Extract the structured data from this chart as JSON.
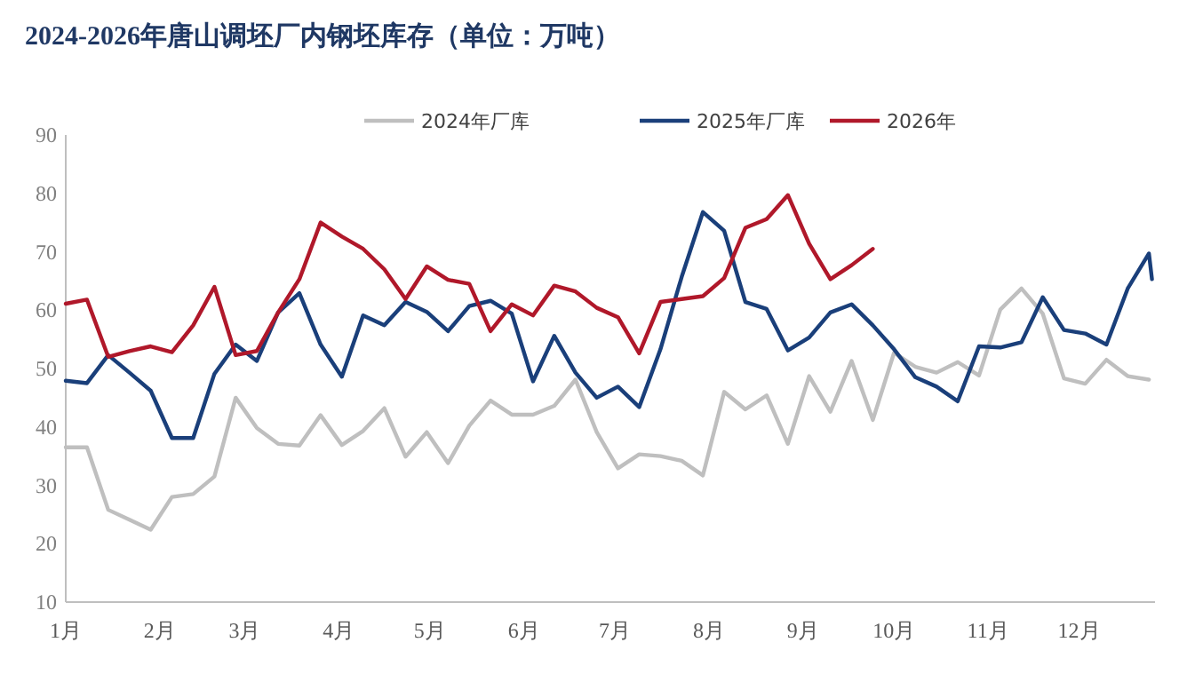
{
  "chart_data": {
    "type": "line",
    "title": "2024-2026年唐山调坯厂内钢坯库存（单位：万吨）",
    "x": [
      "--01-01",
      "--01-08",
      "--01-15",
      "--01-22",
      "--01-29",
      "--02-05",
      "--02-12",
      "--02-19",
      "--02-26",
      "--03-05",
      "--03-12",
      "--03-19",
      "--03-26",
      "--04-02",
      "--04-09",
      "--04-16",
      "--04-23",
      "--04-30",
      "--05-07",
      "--05-14",
      "--05-21",
      "--05-28",
      "--06-04",
      "--06-11",
      "--06-18",
      "--06-25",
      "--07-02",
      "--07-09",
      "--07-16",
      "--07-23",
      "--07-30",
      "--08-06",
      "--08-13",
      "--08-20",
      "--08-27",
      "--09-03",
      "--09-10",
      "--09-17",
      "--09-24",
      "--10-01",
      "--10-08",
      "--10-15",
      "--10-22",
      "--10-29",
      "--11-05",
      "--11-12",
      "--11-19",
      "--11-26",
      "--12-03",
      "--12-10",
      "--12-17",
      "--12-24"
    ],
    "xlim": [
      "--01-01",
      "--12-26"
    ],
    "xticks": [
      {
        "value": "--01-01",
        "label": "1月"
      },
      {
        "value": "--02-01",
        "label": "2月"
      },
      {
        "value": "--03-01",
        "label": "3月"
      },
      {
        "value": "--04-01",
        "label": "4月"
      },
      {
        "value": "--05-01",
        "label": "5月"
      },
      {
        "value": "--06-01",
        "label": "6月"
      },
      {
        "value": "--07-01",
        "label": "7月"
      },
      {
        "value": "--08-01",
        "label": "8月"
      },
      {
        "value": "--09-01",
        "label": "9月"
      },
      {
        "value": "--10-01",
        "label": "10月"
      },
      {
        "value": "--11-01",
        "label": "11月"
      },
      {
        "value": "--12-01",
        "label": "12月"
      }
    ],
    "ylim": [
      10,
      90
    ],
    "yticks": [
      10,
      20,
      30,
      40,
      50,
      60,
      70,
      80,
      90
    ],
    "legend": "top",
    "series": [
      {
        "name": "2024年厂库",
        "color": "#bfbfbf",
        "values": [
          36.5,
          36.5,
          25.8,
          24.1,
          22.4,
          28.0,
          28.5,
          31.5,
          45.0,
          39.8,
          37.1,
          36.8,
          42.0,
          36.9,
          39.3,
          43.2,
          34.9,
          39.1,
          33.8,
          40.2,
          44.5,
          42.1,
          42.1,
          43.6,
          48.1,
          39.1,
          32.9,
          35.3,
          35.0,
          34.2,
          31.7,
          46.0,
          43.0,
          45.4,
          37.1,
          48.7,
          42.6,
          51.3,
          41.2,
          52.7,
          50.3,
          49.3,
          51.1,
          48.8,
          60.1,
          63.7,
          59.4,
          48.3,
          47.4,
          51.5,
          48.7,
          48.1
        ]
      },
      {
        "name": "2025年厂库",
        "color": "#1a3f7a",
        "x": [
          "--01-01",
          "--01-08",
          "--01-15",
          "--01-22",
          "--01-29",
          "--02-05",
          "--02-12",
          "--02-19",
          "--02-26",
          "--03-05",
          "--03-12",
          "--03-19",
          "--03-26",
          "--04-02",
          "--04-09",
          "--04-16",
          "--04-23",
          "--04-30",
          "--05-07",
          "--05-14",
          "--05-21",
          "--05-28",
          "--06-04",
          "--06-11",
          "--06-18",
          "--06-25",
          "--07-02",
          "--07-09",
          "--07-16",
          "--07-23",
          "--07-30",
          "--08-06",
          "--08-13",
          "--08-20",
          "--08-27",
          "--09-03",
          "--09-10",
          "--09-17",
          "--09-24",
          "--10-01",
          "--10-08",
          "--10-15",
          "--10-22",
          "--10-29",
          "--11-05",
          "--11-12",
          "--11-19",
          "--11-26",
          "--12-03",
          "--12-10",
          "--12-17",
          "--12-24",
          "--12-25"
        ],
        "values": [
          47.9,
          47.5,
          52.3,
          49.3,
          46.2,
          38.1,
          38.1,
          49.1,
          54.1,
          51.3,
          59.6,
          62.9,
          54.1,
          48.6,
          59.1,
          57.4,
          61.4,
          59.7,
          56.4,
          60.7,
          61.6,
          59.4,
          47.8,
          55.6,
          49.3,
          45.0,
          46.9,
          43.4,
          53.3,
          65.7,
          76.8,
          73.6,
          61.4,
          60.2,
          53.1,
          55.3,
          59.6,
          61.0,
          57.4,
          53.3,
          48.5,
          46.9,
          44.4,
          53.8,
          53.6,
          54.5,
          62.2,
          56.6,
          56.0,
          54.1,
          63.7,
          69.7,
          65.3
        ]
      },
      {
        "name": "2026年",
        "color": "#b0182a",
        "x": [
          "--01-01",
          "--01-08",
          "--01-15",
          "--01-22",
          "--01-29",
          "--02-05",
          "--02-12",
          "--02-19",
          "--02-26",
          "--03-05",
          "--03-12",
          "--03-19",
          "--03-26",
          "--04-02",
          "--04-09",
          "--04-16",
          "--04-23",
          "--04-30",
          "--05-07",
          "--05-14",
          "--05-21",
          "--05-28",
          "--06-04",
          "--06-11",
          "--06-18",
          "--06-25",
          "--07-02",
          "--07-09",
          "--07-16",
          "--07-23",
          "--07-30",
          "--08-06",
          "--08-13",
          "--08-20",
          "--08-27",
          "--09-03",
          "--09-10",
          "--09-17",
          "--09-24"
        ],
        "values": [
          61.1,
          61.8,
          52.0,
          53.0,
          53.8,
          52.8,
          57.4,
          64.0,
          52.3,
          53.0,
          59.6,
          65.3,
          75.0,
          72.6,
          70.5,
          67.0,
          61.9,
          67.5,
          65.2,
          64.5,
          56.4,
          61.0,
          59.1,
          64.2,
          63.2,
          60.4,
          58.8,
          52.6,
          61.4,
          61.9,
          62.4,
          65.5,
          74.1,
          75.6,
          79.7,
          71.4,
          65.3,
          67.7,
          70.5
        ]
      }
    ]
  }
}
